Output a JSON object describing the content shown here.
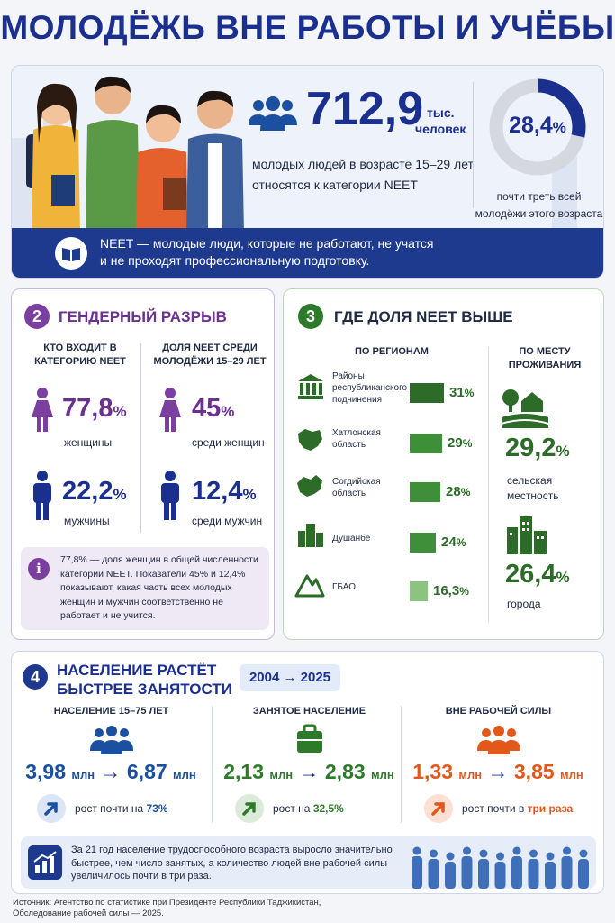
{
  "header": {
    "title": "МОЛОДЁЖЬ ВНЕ РАБОТЫ И УЧЁБЫ"
  },
  "hero": {
    "number": "712,9",
    "unit_line1": "тыс.",
    "unit_line2": "человек",
    "desc_line1": "молодых людей в возрасте 15–29 лет",
    "desc_line2": "относятся к категории NEET",
    "share_value": "28,4",
    "share_percent": "%",
    "share_fraction": 0.284,
    "share_caption_line1": "почти треть всей",
    "share_caption_line2": "молодёжи этого возраста",
    "definition_line1": "NEET — молодые люди, которые не работают, не учатся",
    "definition_line2": "и не проходят профессиональную подготовку.",
    "icons": [
      "people-icon",
      "book-icon"
    ]
  },
  "gender": {
    "number": "2",
    "title": "ГЕНДЕРНЫЙ РАЗРЫВ",
    "col1_line1": "КТО ВХОДИТ В",
    "col1_line2": "КАТЕГОРИЮ NEET",
    "col2_line1": "ДОЛЯ NEET СРЕДИ",
    "col2_line2": "МОЛОДЁЖИ 15–29 ЛЕТ",
    "women_share": "77,8",
    "women_label": "женщины",
    "men_share": "22,2",
    "men_label": "мужчины",
    "women_rate": "45",
    "women_rate_label": "среди женщин",
    "men_rate": "12,4",
    "men_rate_label": "среди мужчин",
    "percent": "%",
    "note_line1": "77,8% — доля женщин в общей численности",
    "note_line2": "категории NEET. Показатели 45% и 12,4%",
    "note_line3": "показывают, какая часть всех молодых",
    "note_line4": "женщин и мужчин соответственно не",
    "note_line5": "работает и не учится.",
    "colors": {
      "female": "#7b3fa0",
      "male": "#1b2f8f"
    }
  },
  "regions": {
    "number": "3",
    "title": "ГДЕ ДОЛЯ NEET ВЫШЕ",
    "col_regions": "ПО РЕГИОНАМ",
    "col_place_line1": "ПО МЕСТУ",
    "col_place_line2": "ПРОЖИВАНИЯ",
    "items": [
      {
        "name_lines": [
          "Районы",
          "республиканского",
          "подчинения"
        ],
        "value": "31",
        "num": 31,
        "icon": "government-building-icon"
      },
      {
        "name_lines": [
          "Хатлонская",
          "область"
        ],
        "value": "29",
        "num": 29,
        "icon": "region-map-icon"
      },
      {
        "name_lines": [
          "Согдийская",
          "область"
        ],
        "value": "28",
        "num": 28,
        "icon": "region-map-icon"
      },
      {
        "name_lines": [
          "Душанбе"
        ],
        "value": "24",
        "num": 24,
        "icon": "city-icon"
      },
      {
        "name_lines": [
          "ГБАО"
        ],
        "value": "16,3",
        "num": 16.3,
        "icon": "mountain-icon"
      }
    ],
    "percent": "%",
    "rural_value": "29,2",
    "rural_line1": "сельская",
    "rural_line2": "местность",
    "urban_value": "26,4",
    "urban_label": "города",
    "colors": {
      "bar": "#3f8f3a",
      "bar_light": "#8cc47f"
    }
  },
  "growth": {
    "number": "4",
    "title_line1": "НАСЕЛЕНИЕ РАСТЁТ",
    "title_line2": "БЫСТРЕЕ ЗАНЯТОСТИ",
    "period": "2004 → 2025",
    "stats": [
      {
        "header": "НАСЕЛЕНИЕ 15–75 ЛЕТ",
        "from": "3,98",
        "to": "6,87",
        "unit": "млн",
        "growth_prefix": "рост почти на",
        "growth_value": "73%",
        "color": "#1b4fa0",
        "icon": "people-group-icon"
      },
      {
        "header": "ЗАНЯТОЕ НАСЕЛЕНИЕ",
        "from": "2,13",
        "to": "2,83",
        "unit": "млн",
        "growth_prefix": "рост на",
        "growth_value": "32,5%",
        "color": "#2d7a2a",
        "icon": "briefcase-icon"
      },
      {
        "header": "ВНЕ РАБОЧЕЙ СИЛЫ",
        "from": "1,33",
        "to": "3,85",
        "unit": "млн",
        "growth_prefix": "рост почти в",
        "growth_value": "три раза",
        "color": "#e2571a",
        "icon": "people-group-icon"
      }
    ],
    "summary_line1": "За 21 год население трудоспособного возраста выросло значительно",
    "summary_line2": "быстрее, чем число занятых, а количество людей вне рабочей силы",
    "summary_line3": "увеличилось почти в три раза."
  },
  "footer": {
    "line1": "Источник: Агентство по статистике при Президенте Республики Таджикистан,",
    "line2": "Обследование рабочей силы — 2025."
  }
}
